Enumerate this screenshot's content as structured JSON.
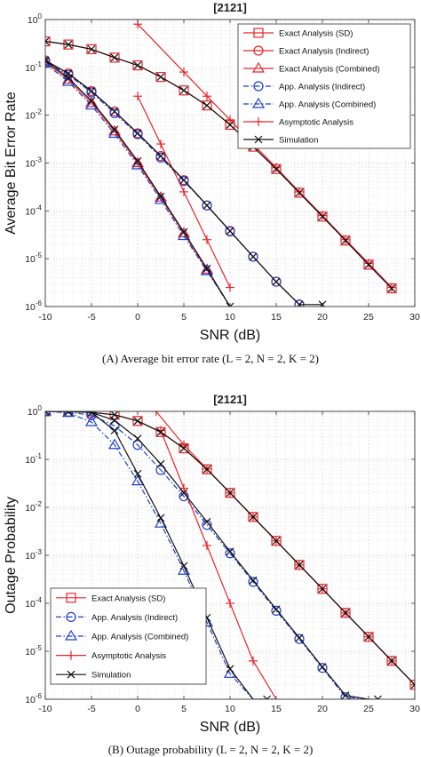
{
  "chart_data": [
    {
      "type": "line",
      "title": "[2121]",
      "xlabel": "SNR (dB)",
      "ylabel": "Average Bit Error Rate",
      "caption": "(A)  Average bit error rate (L = 2, N = 2, K = 2)",
      "xlim": [
        -10,
        30
      ],
      "ylim_log10": [
        -6,
        0
      ],
      "yscale": "log",
      "x_ticks": [
        "-10",
        "-5",
        "0",
        "5",
        "10",
        "15",
        "20",
        "25",
        "30"
      ],
      "y_ticks": [
        "10^0",
        "10^-1",
        "10^-2",
        "10^-3",
        "10^-4",
        "10^-5",
        "10^-6"
      ],
      "grid": true,
      "legend_position": "top-right",
      "series": [
        {
          "name": "Exact Analysis (SD)",
          "color": "#e8262b",
          "dash": "solid",
          "marker": "square",
          "x": [
            -10,
            -7.5,
            -5,
            -2.5,
            0,
            2.5,
            5,
            7.5,
            10,
            12.5,
            15,
            17.5,
            20,
            22.5,
            25,
            27.5
          ],
          "y": [
            0.35,
            0.3,
            0.24,
            0.16,
            0.11,
            0.063,
            0.033,
            0.016,
            0.0063,
            0.0022,
            0.00075,
            0.00024,
            7.6e-05,
            2.4e-05,
            7.5e-06,
            2.4e-06
          ]
        },
        {
          "name": "Exact Analysis (Indirect)",
          "color": "#e8262b",
          "dash": "solid",
          "marker": "circle",
          "x": [
            -10,
            -7.5,
            -5,
            -2.5,
            0,
            2.5,
            5,
            7.5,
            10,
            12.5,
            15,
            17.5
          ],
          "y": [
            0.14,
            0.075,
            0.032,
            0.012,
            0.0042,
            0.0014,
            0.00044,
            0.00013,
            3.8e-05,
            1.1e-05,
            3.3e-06,
            1.1e-06
          ]
        },
        {
          "name": "Exact Analysis (Combined)",
          "color": "#e8262b",
          "dash": "solid",
          "marker": "triangle",
          "x": [
            -10,
            -7.5,
            -5,
            -2.5,
            0,
            2.5,
            5,
            7.5,
            10
          ],
          "y": [
            0.13,
            0.055,
            0.018,
            0.0046,
            0.001,
            0.00019,
            3.4e-05,
            5.9e-06,
            9.5e-07
          ]
        },
        {
          "name": "App. Analysis (Indirect)",
          "color": "#1f3fd1",
          "dash": "dashdot",
          "marker": "circle",
          "x": [
            -10,
            -7.5,
            -5,
            -2.5,
            0,
            2.5,
            5,
            7.5,
            10,
            12.5,
            15,
            17.5
          ],
          "y": [
            0.13,
            0.07,
            0.03,
            0.011,
            0.004,
            0.0013,
            0.00042,
            0.00013,
            3.7e-05,
            1.1e-05,
            3.3e-06,
            1.1e-06
          ]
        },
        {
          "name": "App. Analysis (Combined)",
          "color": "#1f3fd1",
          "dash": "dashdot",
          "marker": "triangle",
          "x": [
            -10,
            -7.5,
            -5,
            -2.5,
            0,
            2.5,
            5,
            7.5,
            10
          ],
          "y": [
            0.12,
            0.05,
            0.016,
            0.0041,
            0.0009,
            0.00017,
            3e-05,
            5.5e-06,
            9e-07
          ]
        },
        {
          "name": "Asymptotic Analysis",
          "color": "#e8262b",
          "dash": "solid",
          "marker": "plus",
          "x_groups": [
            [
              0,
              5,
              7.5,
              10,
              12.5,
              15,
              17.5,
              20,
              22.5,
              25,
              27.5
            ],
            [
              0,
              2.5,
              5,
              7.5,
              10
            ]
          ],
          "y_groups": [
            [
              0.8,
              0.08,
              0.025,
              0.008,
              0.0025,
              0.0008,
              0.00025,
              8e-05,
              2.5e-05,
              8e-06,
              2.5e-06
            ],
            [
              0.025,
              0.0025,
              0.00025,
              2.5e-05,
              2.5e-06
            ]
          ]
        },
        {
          "name": "Simulation",
          "color": "#111111",
          "dash": "solid",
          "marker": "x",
          "x_groups": [
            [
              -10,
              -7.5,
              -5,
              -2.5,
              0,
              2.5,
              5,
              7.5,
              10,
              12.5,
              15,
              17.5,
              20,
              22.5,
              25,
              27.5
            ],
            [
              -10,
              -7.5,
              -5,
              -2.5,
              0,
              2.5,
              5,
              7.5,
              10,
              12.5,
              15,
              17.5,
              20
            ],
            [
              -10,
              -7.5,
              -5,
              -2.5,
              0,
              2.5,
              5,
              7.5,
              10
            ]
          ],
          "y_groups": [
            [
              0.35,
              0.3,
              0.24,
              0.16,
              0.11,
              0.063,
              0.033,
              0.016,
              0.0063,
              0.0022,
              0.00075,
              0.00024,
              7.6e-05,
              2.4e-05,
              7.5e-06,
              2.4e-06
            ],
            [
              0.14,
              0.075,
              0.032,
              0.012,
              0.0042,
              0.0014,
              0.00044,
              0.00013,
              3.8e-05,
              1.1e-05,
              3.3e-06,
              1.1e-06,
              1.1e-06
            ],
            [
              0.14,
              0.06,
              0.02,
              0.005,
              0.0011,
              0.0002,
              3.6e-05,
              6.2e-06,
              1e-06
            ]
          ]
        }
      ]
    },
    {
      "type": "line",
      "title": "[2121]",
      "xlabel": "SNR (dB)",
      "ylabel": "Outage Probability",
      "caption": "(B)  Outage probability (L = 2, N = 2, K = 2)",
      "xlim": [
        -10,
        30
      ],
      "ylim_log10": [
        -6,
        0
      ],
      "yscale": "log",
      "x_ticks": [
        "-10",
        "-5",
        "0",
        "5",
        "10",
        "15",
        "20",
        "25",
        "30"
      ],
      "y_ticks": [
        "10^0",
        "10^-1",
        "10^-2",
        "10^-3",
        "10^-4",
        "10^-5",
        "10^-6"
      ],
      "grid": true,
      "legend_position": "bottom-left",
      "series": [
        {
          "name": "Exact Analysis (SD)",
          "color": "#e8262b",
          "dash": "solid",
          "marker": "square",
          "x": [
            -10,
            -7.5,
            -5,
            -2.5,
            0,
            2.5,
            5,
            7.5,
            10,
            12.5,
            15,
            17.5,
            20,
            22.5,
            25,
            27.5,
            30
          ],
          "y": [
            1,
            0.99,
            0.95,
            0.85,
            0.63,
            0.37,
            0.17,
            0.062,
            0.02,
            0.0063,
            0.002,
            0.00063,
            0.0002,
            6.3e-05,
            2e-05,
            6.3e-06,
            2e-06
          ]
        },
        {
          "name": "App. Analysis (Indirect)",
          "color": "#1f3fd1",
          "dash": "dashdot",
          "marker": "circle",
          "x": [
            -10,
            -7.5,
            -5,
            -2.5,
            0,
            2.5,
            5,
            7.5,
            10,
            12.5,
            15,
            17.5,
            20,
            22.5,
            25
          ],
          "y": [
            1,
            0.97,
            0.83,
            0.5,
            0.2,
            0.06,
            0.017,
            0.0043,
            0.0011,
            0.00028,
            7e-05,
            1.8e-05,
            4.5e-06,
            1.1e-06,
            2.8e-07
          ]
        },
        {
          "name": "App. Analysis (Combined)",
          "color": "#1f3fd1",
          "dash": "dashdot",
          "marker": "triangle",
          "x": [
            -10,
            -7.5,
            -5,
            -2.5,
            0,
            2.5,
            5,
            7.5,
            10,
            12.5,
            15
          ],
          "y": [
            1,
            0.93,
            0.6,
            0.2,
            0.035,
            0.0046,
            0.00048,
            4e-05,
            3.4e-06,
            2.5e-07,
            2e-08
          ]
        },
        {
          "name": "Asymptotic Analysis",
          "color": "#e8262b",
          "dash": "solid",
          "marker": "plus",
          "x_groups": [
            [
              2,
              5,
              7.5,
              10,
              12.5,
              15,
              17.5,
              20,
              22.5,
              25,
              27.5,
              30
            ],
            [
              2.5,
              5,
              7.5,
              10,
              12.5,
              15
            ]
          ],
          "y_groups": [
            [
              1,
              0.2,
              0.063,
              0.02,
              0.0063,
              0.002,
              0.00063,
              0.0002,
              6.3e-05,
              2e-05,
              6.3e-06,
              2e-06
            ],
            [
              0.4,
              0.025,
              0.0016,
              0.0001,
              6.3e-06,
              4e-07
            ]
          ]
        },
        {
          "name": "Simulation",
          "color": "#111111",
          "dash": "solid",
          "marker": "x",
          "x_groups": [
            [
              -10,
              -7.5,
              -5,
              -2.5,
              0,
              2.5,
              5,
              7.5,
              10,
              12.5,
              15,
              17.5,
              20,
              22.5,
              25,
              27.5,
              30
            ],
            [
              -10,
              -7.5,
              -5,
              -2.5,
              0,
              2.5,
              5,
              7.5,
              10,
              12.5,
              15,
              17.5,
              20,
              22.5,
              25,
              26
            ],
            [
              -10,
              -7.5,
              -5,
              -2.5,
              0,
              2.5,
              5,
              7.5,
              10,
              12.5,
              14
            ]
          ],
          "y_groups": [
            [
              1,
              0.99,
              0.95,
              0.85,
              0.63,
              0.37,
              0.17,
              0.062,
              0.02,
              0.0063,
              0.002,
              0.00063,
              0.0002,
              6.3e-05,
              2e-05,
              6.3e-06,
              2e-06
            ],
            [
              1,
              0.99,
              0.95,
              0.65,
              0.27,
              0.08,
              0.02,
              0.005,
              0.0012,
              0.0003,
              7.5e-05,
              1.9e-05,
              4.7e-06,
              1.2e-06,
              3e-07,
              1e-06
            ],
            [
              1,
              0.99,
              0.95,
              0.4,
              0.05,
              0.006,
              0.0006,
              5e-05,
              4.3e-06,
              3.2e-07,
              1e-06
            ]
          ]
        }
      ]
    }
  ]
}
